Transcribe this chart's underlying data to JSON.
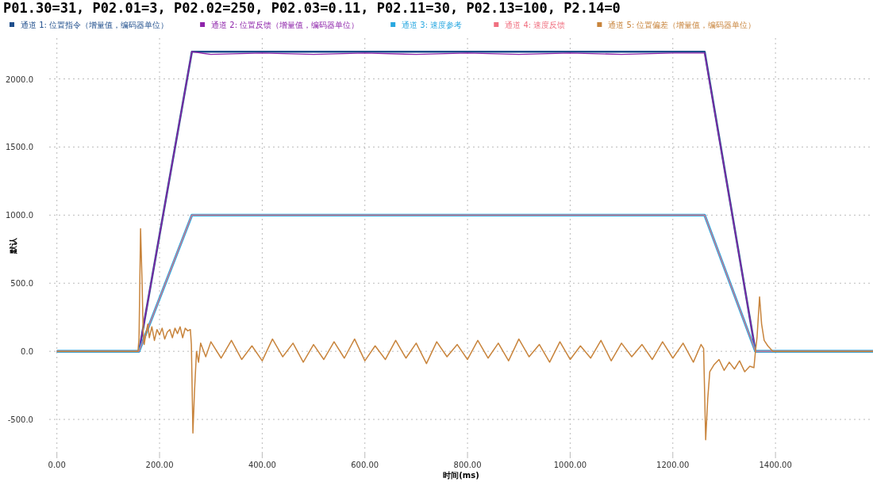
{
  "chart_data": {
    "type": "line",
    "title": "P01.30=31, P02.01=3, P02.02=250, P02.03=0.11, P02.11=30, P02.13=100, P2.14=0",
    "xlabel": "时间(ms)",
    "ylabel": "默认",
    "xlim": [
      -15,
      1590
    ],
    "ylim": [
      -750,
      2300
    ],
    "xticks": [
      {
        "value": 0,
        "label": "0.00"
      },
      {
        "value": 200,
        "label": "200.00"
      },
      {
        "value": 400,
        "label": "400.00"
      },
      {
        "value": 600,
        "label": "600.00"
      },
      {
        "value": 800,
        "label": "800.00"
      },
      {
        "value": 1000,
        "label": "1000.00"
      },
      {
        "value": 1200,
        "label": "1200.00"
      },
      {
        "value": 1400,
        "label": "1400.00"
      }
    ],
    "yticks": [
      {
        "value": -500,
        "label": "-500.0"
      },
      {
        "value": 0,
        "label": "0.0"
      },
      {
        "value": 500,
        "label": "500.0"
      },
      {
        "value": 1000,
        "label": "1000.0"
      },
      {
        "value": 1500,
        "label": "1500.0"
      },
      {
        "value": 2000,
        "label": "2000.0"
      }
    ],
    "grid": true,
    "legend": "top",
    "marker": "none",
    "series": [
      {
        "name": "通道 1: 位置指令（增量值，编码器单位）",
        "color": "#1f4e8c",
        "x": [
          0,
          160,
          263,
          1262,
          1361,
          1590
        ],
        "values": [
          0,
          0,
          2200,
          2200,
          0,
          0
        ]
      },
      {
        "name": "通道 2: 位置反馈（增量值，编码器单位）",
        "color": "#8e24aa",
        "x": [
          0,
          160,
          263,
          300,
          400,
          500,
          600,
          700,
          800,
          900,
          1000,
          1100,
          1200,
          1262,
          1361,
          1590
        ],
        "values": [
          0,
          0,
          2200,
          2180,
          2190,
          2180,
          2190,
          2180,
          2190,
          2180,
          2190,
          2180,
          2190,
          2190,
          0,
          0
        ]
      },
      {
        "name": "通道 3: 速度参考",
        "color": "#29a8e0",
        "x": [
          0,
          160,
          263,
          1262,
          1361,
          1590
        ],
        "values": [
          0,
          0,
          1000,
          1000,
          0,
          0
        ]
      },
      {
        "name": "通道 4: 速度反馈",
        "color": "#f07080",
        "x": [
          0,
          160,
          263,
          1262,
          1361,
          1590
        ],
        "values": [
          0,
          0,
          1000,
          1000,
          0,
          0
        ]
      },
      {
        "name": "通道 5: 位置偏差（增量值，编码器单位）",
        "color": "#c8843c",
        "x": [
          0,
          158,
          160,
          163,
          166,
          168,
          170,
          173,
          177,
          180,
          185,
          190,
          195,
          200,
          205,
          210,
          215,
          220,
          225,
          230,
          235,
          240,
          245,
          250,
          255,
          260,
          262,
          265,
          268,
          272,
          276,
          280,
          290,
          300,
          320,
          340,
          360,
          380,
          400,
          420,
          440,
          460,
          480,
          500,
          520,
          540,
          560,
          580,
          600,
          620,
          640,
          660,
          680,
          700,
          720,
          740,
          760,
          780,
          800,
          820,
          840,
          860,
          880,
          900,
          920,
          940,
          960,
          980,
          1000,
          1020,
          1040,
          1060,
          1080,
          1100,
          1120,
          1140,
          1160,
          1180,
          1200,
          1220,
          1240,
          1255,
          1260,
          1264,
          1268,
          1272,
          1280,
          1290,
          1300,
          1310,
          1320,
          1330,
          1340,
          1350,
          1358,
          1361,
          1364,
          1369,
          1373,
          1378,
          1385,
          1395,
          1590
        ],
        "values": [
          0,
          0,
          100,
          900,
          500,
          150,
          50,
          120,
          200,
          100,
          180,
          80,
          160,
          120,
          170,
          90,
          140,
          160,
          100,
          170,
          130,
          180,
          100,
          170,
          150,
          160,
          50,
          -600,
          -300,
          0,
          -80,
          60,
          -40,
          70,
          -50,
          80,
          -60,
          40,
          -70,
          90,
          -40,
          60,
          -80,
          50,
          -60,
          70,
          -50,
          90,
          -70,
          40,
          -60,
          80,
          -50,
          60,
          -90,
          70,
          -40,
          50,
          -60,
          80,
          -50,
          60,
          -70,
          90,
          -40,
          50,
          -80,
          70,
          -60,
          40,
          -50,
          80,
          -70,
          60,
          -40,
          50,
          -60,
          70,
          -50,
          60,
          -80,
          50,
          20,
          -650,
          -350,
          -150,
          -100,
          -60,
          -140,
          -80,
          -130,
          -70,
          -150,
          -110,
          -120,
          0,
          100,
          400,
          200,
          80,
          40,
          0,
          0
        ]
      }
    ]
  }
}
